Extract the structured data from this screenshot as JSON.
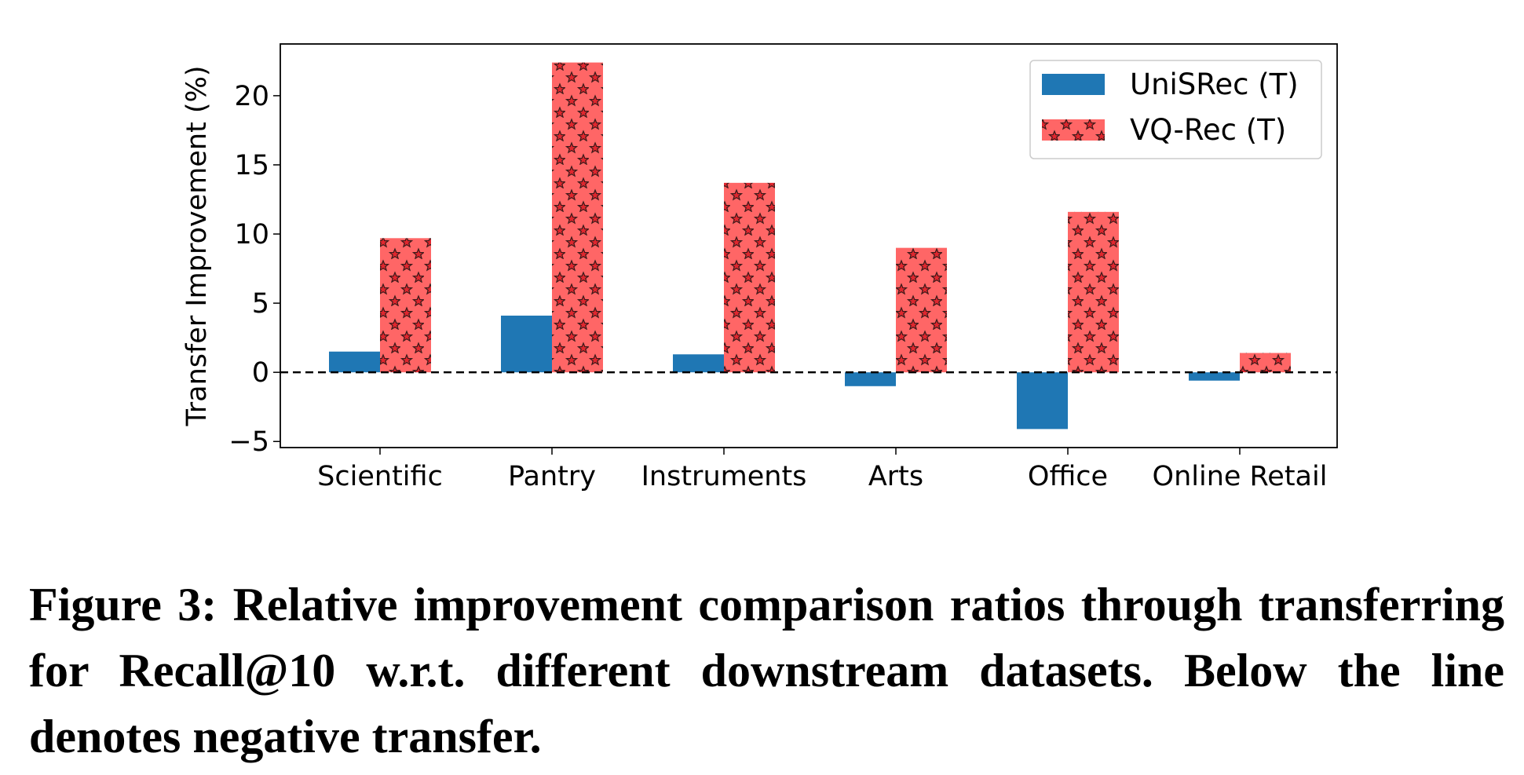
{
  "chart_data": {
    "type": "bar",
    "categories": [
      "Scientific",
      "Pantry",
      "Instruments",
      "Arts",
      "Office",
      "Online Retail"
    ],
    "series": [
      {
        "name": "UniSRec (T)",
        "color": "#1f77b4",
        "values": [
          1.5,
          4.1,
          1.3,
          -1.0,
          -4.1,
          -0.6
        ]
      },
      {
        "name": "VQ-Rec (T)",
        "color": "#ff6666",
        "values": [
          9.7,
          22.4,
          13.7,
          9.0,
          11.6,
          1.4
        ]
      }
    ],
    "ylabel": "Transfer Improvement (%)",
    "ylim": [
      -5.44,
      23.74
    ],
    "yticks": [
      {
        "value": -5,
        "label": "−5"
      },
      0,
      5,
      10,
      15,
      20
    ],
    "legend": "upper right"
  },
  "caption": "Figure 3: Relative improvement comparison ratios through transferring for Recall@10 w.r.t. different downstream datasets. Below the line denotes negative transfer."
}
